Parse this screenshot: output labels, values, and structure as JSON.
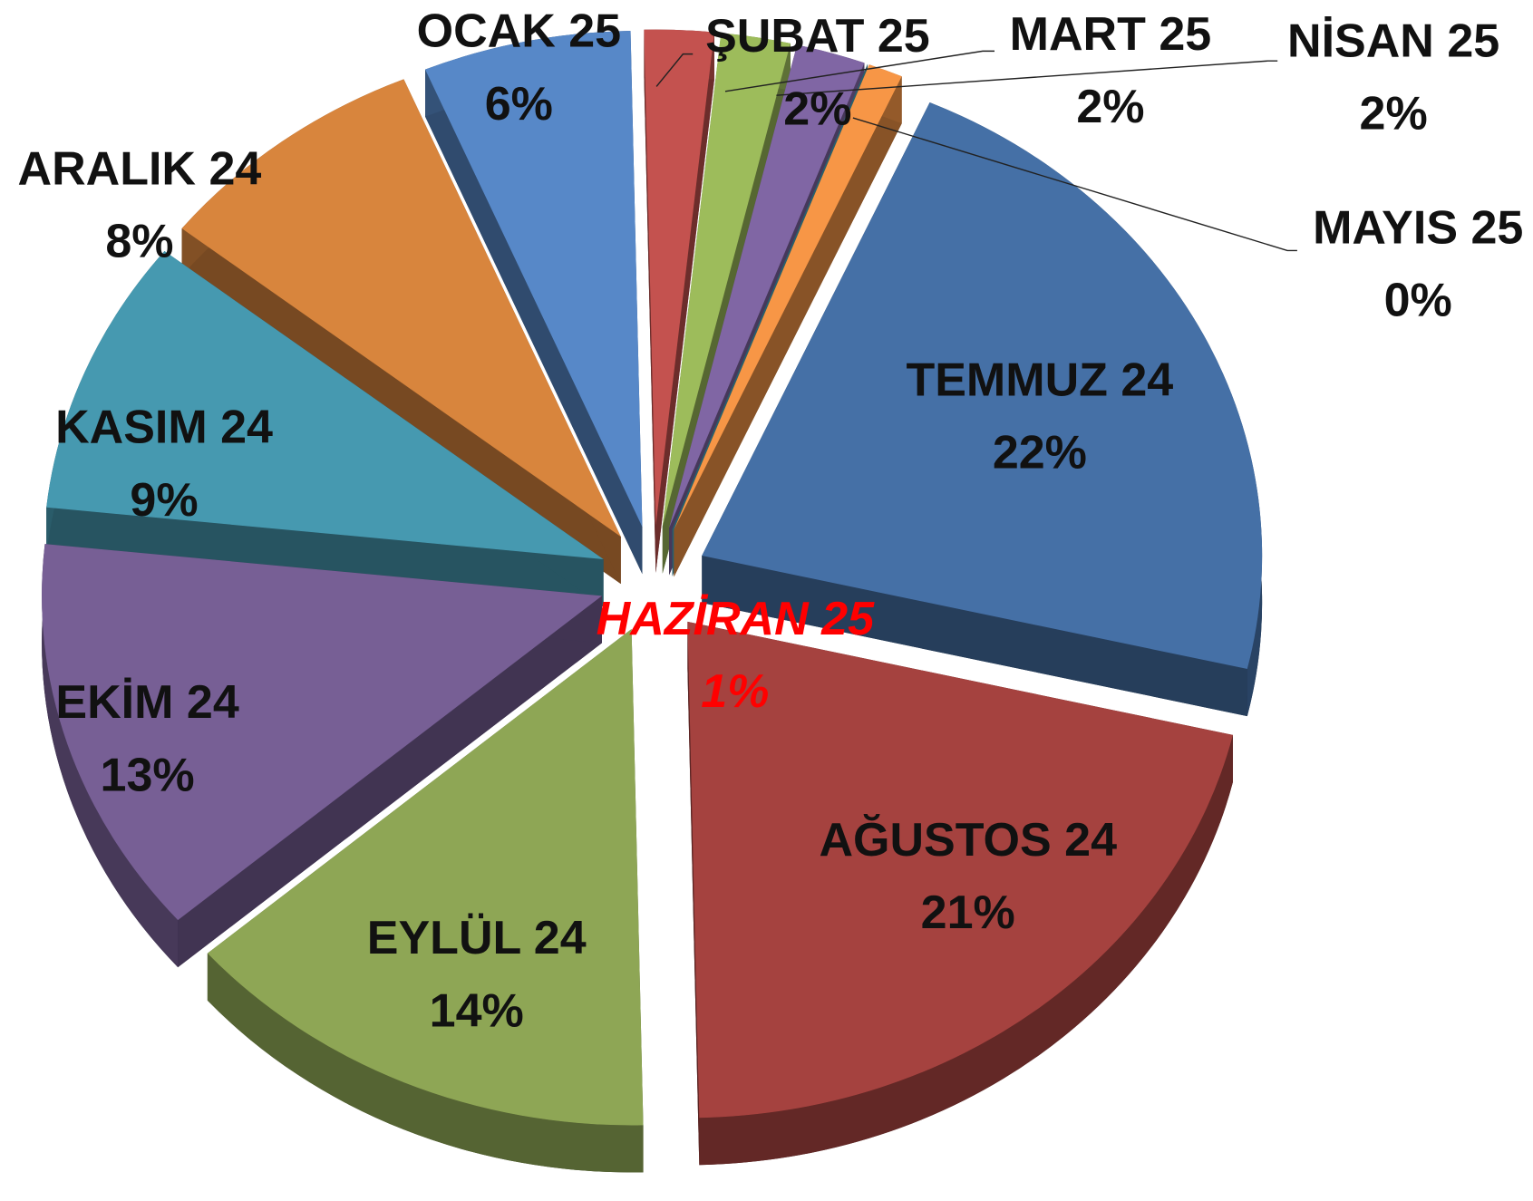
{
  "chart_data": {
    "type": "pie",
    "categories": [
      "TEMMUZ 24",
      "AĞUSTOS 24",
      "EYLÜL 24",
      "EKİM 24",
      "KASIM 24",
      "ARALIK 24",
      "OCAK 25",
      "ŞUBAT 25",
      "MART 25",
      "NİSAN 25",
      "MAYIS 25",
      "HAZİRAN 25"
    ],
    "values": [
      22,
      21,
      14,
      13,
      9,
      8,
      6,
      2,
      2,
      2,
      0,
      1
    ],
    "value_labels": [
      "22%",
      "21%",
      "14%",
      "13%",
      "9%",
      "8%",
      "6%",
      "2%",
      "2%",
      "2%",
      "0%",
      "1%"
    ],
    "colors": [
      "#4570a6",
      "#a5423f",
      "#8ea655",
      "#775f95",
      "#4699b0",
      "#d8853d",
      "#5788c8",
      "#c4524f",
      "#9dbc5b",
      "#8066a4",
      "#4bacc6",
      "#f79646"
    ]
  }
}
